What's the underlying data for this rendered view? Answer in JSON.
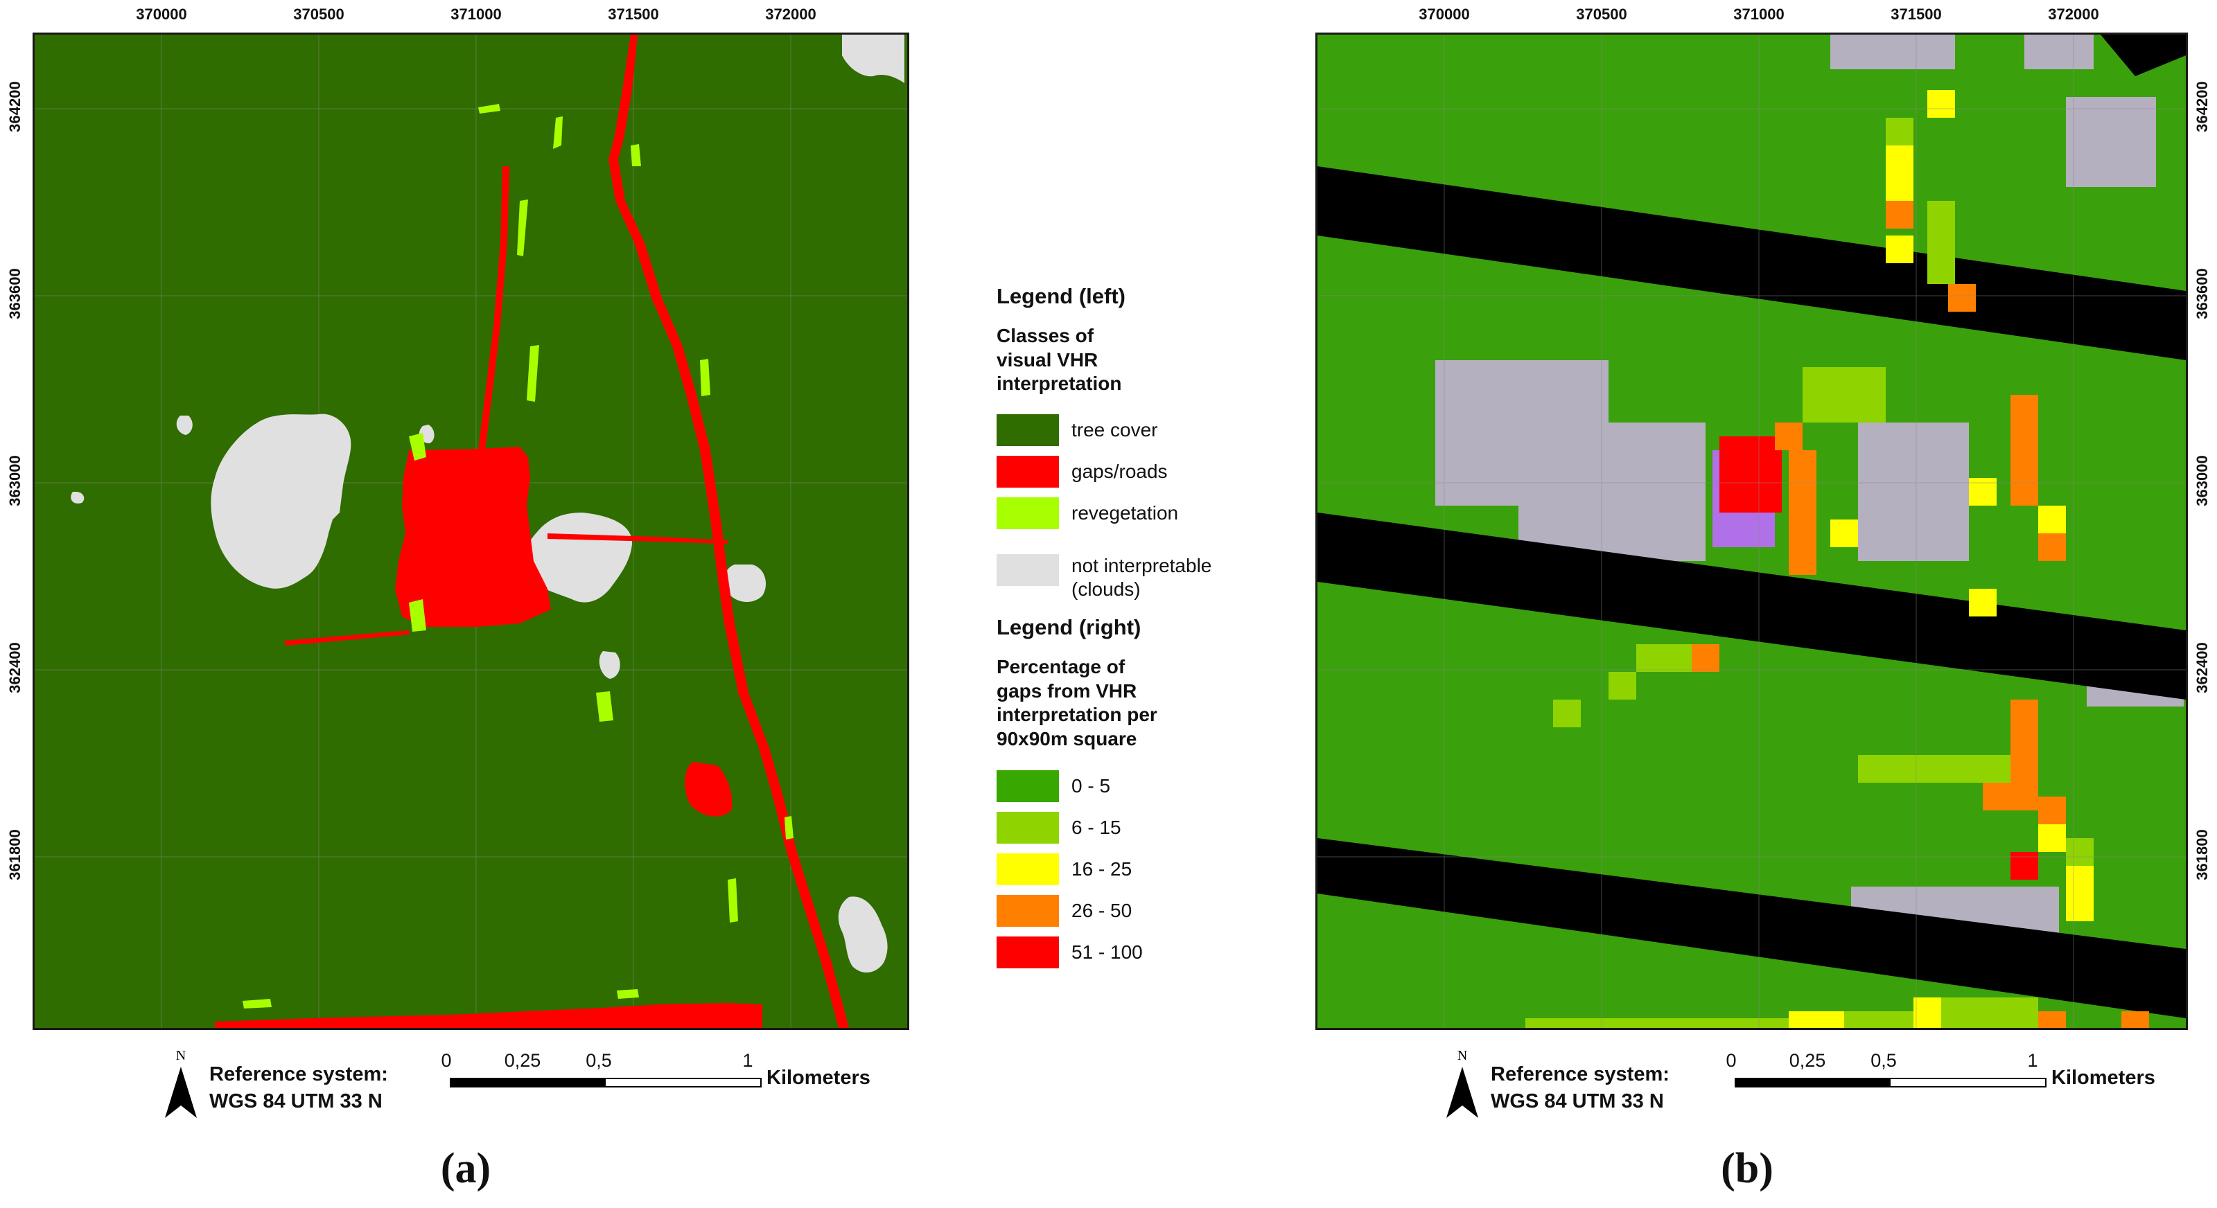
{
  "axes": {
    "x_ticks": [
      "370000",
      "370500",
      "371000",
      "371500",
      "372000"
    ],
    "y_ticks": [
      "364200",
      "363600",
      "363000",
      "362400",
      "361800"
    ]
  },
  "legend_left": {
    "heading": "Legend (left)",
    "subtitle_lines": [
      "Classes of",
      "visual VHR",
      "interpretation"
    ],
    "items": [
      {
        "label": "tree cover",
        "color": "#2f6d00"
      },
      {
        "label": "gaps/roads",
        "color": "#ff0000"
      },
      {
        "label": "revegetation",
        "color": "#a8ff00"
      },
      {
        "label": "not interpretable",
        "label2": "(clouds)",
        "color": "#e0e0e0"
      }
    ]
  },
  "legend_right": {
    "heading": "Legend (right)",
    "subtitle_lines": [
      "Percentage of",
      "gaps from VHR",
      "interpretation per",
      "90x90m square"
    ],
    "items": [
      {
        "label": "0 - 5",
        "color": "#38a800"
      },
      {
        "label": "6 - 15",
        "color": "#8fd400"
      },
      {
        "label": "16 - 25",
        "color": "#ffff00"
      },
      {
        "label": "26 - 50",
        "color": "#ff8000"
      },
      {
        "label": "51 - 100",
        "color": "#ff0000"
      }
    ]
  },
  "scalebar": {
    "north": "N",
    "ref_line1": "Reference system:",
    "ref_line2": "WGS 84 UTM 33 N",
    "ticks": [
      "0",
      "0,25",
      "0,5",
      "1"
    ],
    "unit": "Kilometers"
  },
  "panels": {
    "a": "a",
    "b": "b"
  }
}
